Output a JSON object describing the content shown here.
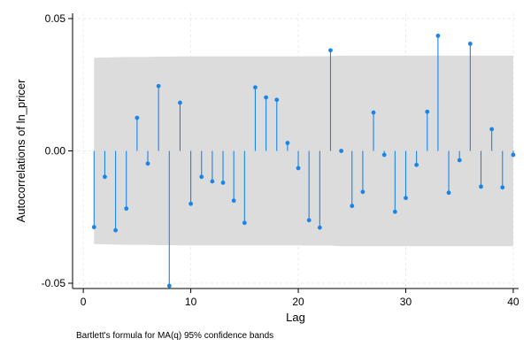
{
  "chart_data": {
    "type": "stem",
    "xlabel": "Lag",
    "ylabel": "Autocorrelations of ln_pricer",
    "note": "Bartlett's formula for MA(q) 95% confidence bands",
    "xlim": [
      -1,
      40.5
    ],
    "ylim": [
      -0.052,
      0.052
    ],
    "x_ticks": [
      0,
      10,
      20,
      30,
      40
    ],
    "x_tick_labels": [
      "0",
      "10",
      "20",
      "30",
      "40"
    ],
    "y_ticks": [
      -0.05,
      0,
      0.05
    ],
    "y_tick_labels": [
      "-0.05",
      "0.00",
      "0.05"
    ],
    "grid": true,
    "series": [
      {
        "lags": [
          1,
          2,
          3,
          4,
          5,
          6,
          7,
          8,
          9,
          10,
          11,
          12,
          13,
          14,
          15,
          16,
          17,
          18,
          19,
          20,
          21,
          22,
          23,
          24,
          25,
          26,
          27,
          28,
          29,
          30,
          31,
          32,
          33,
          34,
          35,
          36,
          37,
          38,
          39,
          40
        ],
        "values": [
          -0.0288,
          -0.0098,
          -0.03,
          -0.0218,
          0.0125,
          -0.0048,
          0.0245,
          -0.051,
          0.0182,
          -0.02,
          -0.0098,
          -0.0115,
          -0.012,
          -0.0188,
          -0.0272,
          0.024,
          0.0202,
          0.0193,
          0.003,
          -0.0065,
          -0.0262,
          -0.029,
          0.038,
          0.0,
          -0.0208,
          -0.0155,
          0.0145,
          -0.0015,
          -0.023,
          -0.0178,
          -0.0053,
          0.0148,
          0.0435,
          -0.0158,
          -0.0035,
          0.0405,
          -0.0135,
          0.0082,
          -0.0138,
          -0.0015
        ]
      }
    ],
    "confidence_band": {
      "lags": [
        1,
        2,
        3,
        4,
        5,
        6,
        7,
        8,
        9,
        10,
        11,
        12,
        13,
        14,
        15,
        16,
        17,
        18,
        19,
        20,
        21,
        22,
        23,
        24,
        25,
        26,
        27,
        28,
        29,
        30,
        31,
        32,
        33,
        34,
        35,
        36,
        37,
        38,
        39,
        40
      ],
      "upper": [
        0.0352,
        0.0353,
        0.0354,
        0.0355,
        0.0355,
        0.0355,
        0.0356,
        0.0356,
        0.0357,
        0.0357,
        0.0357,
        0.0357,
        0.0357,
        0.0357,
        0.0357,
        0.0357,
        0.0357,
        0.0357,
        0.0357,
        0.0357,
        0.0358,
        0.0358,
        0.0358,
        0.036,
        0.036,
        0.036,
        0.036,
        0.036,
        0.036,
        0.036,
        0.036,
        0.036,
        0.036,
        0.036,
        0.036,
        0.036,
        0.036,
        0.036,
        0.036,
        0.036
      ]
    },
    "colors": {
      "stem": "#1a85e8",
      "band": "#dcdcdc",
      "grid": "#eaeaea",
      "axis": "#000000"
    }
  }
}
